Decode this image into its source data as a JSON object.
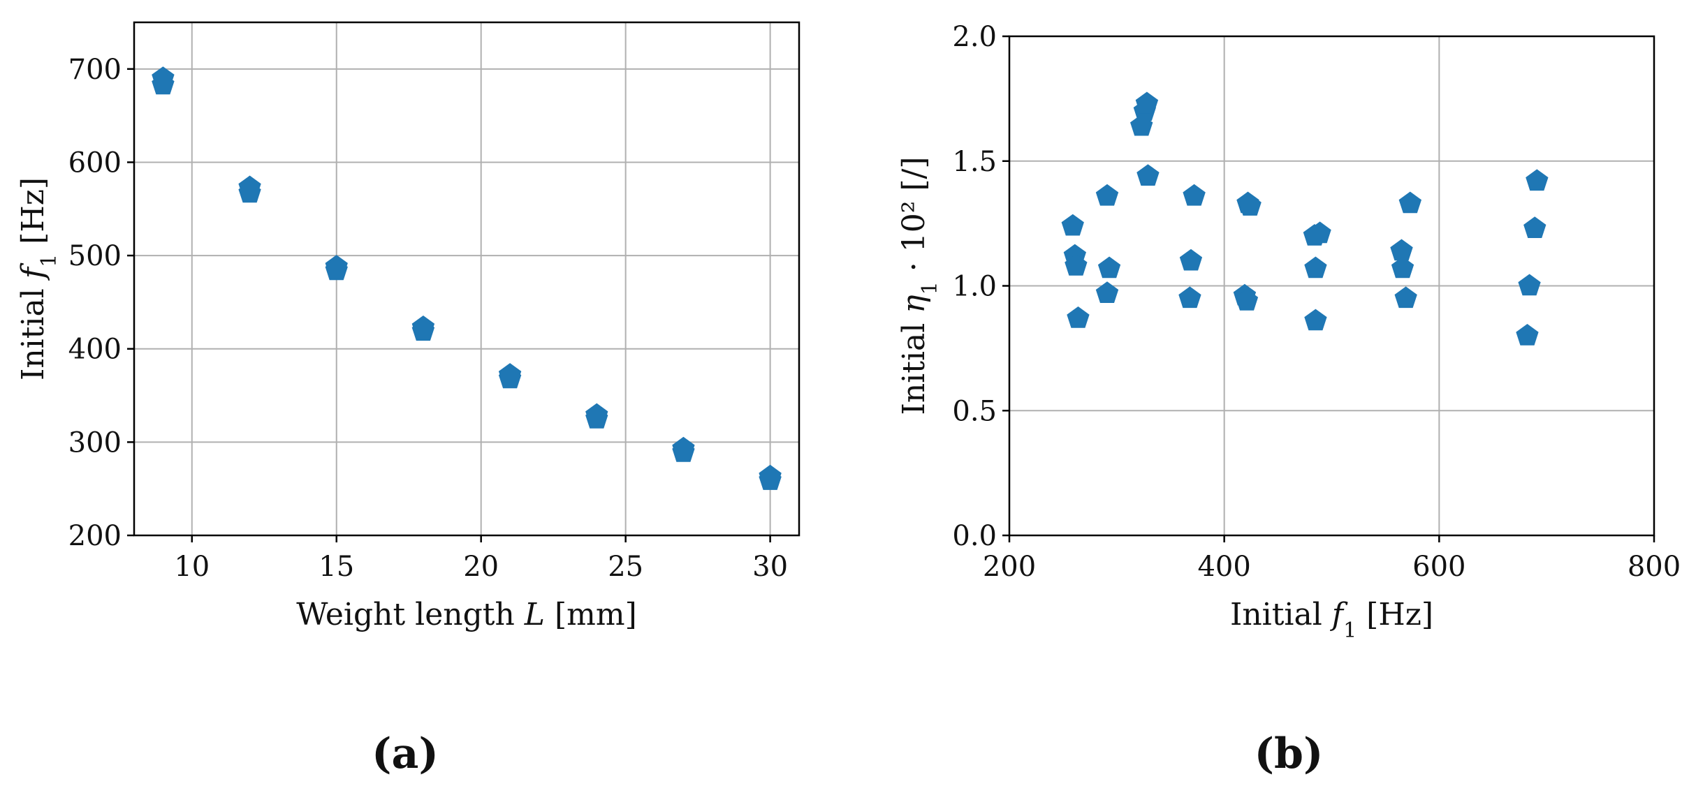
{
  "chart_data": [
    {
      "type": "scatter",
      "panel_label": "(a)",
      "xlabel": "Weight length L [mm]",
      "ylabel": "Initial f1 [Hz]",
      "xlim": [
        8,
        31
      ],
      "ylim": [
        200,
        750
      ],
      "xticks": [
        10,
        15,
        20,
        25,
        30
      ],
      "yticks": [
        200,
        300,
        400,
        500,
        600,
        700
      ],
      "grid": true,
      "marker": "pentagon",
      "color": "#1f77b4",
      "series": [
        {
          "points": [
            [
              9,
              690
            ],
            [
              9,
              683
            ],
            [
              12,
              573
            ],
            [
              12,
              567
            ],
            [
              15,
              488
            ],
            [
              15,
              484
            ],
            [
              18,
              423
            ],
            [
              18,
              419
            ],
            [
              21,
              372
            ],
            [
              21,
              368
            ],
            [
              24,
              329
            ],
            [
              24,
              325
            ],
            [
              27,
              293
            ],
            [
              27,
              289
            ],
            [
              30,
              263
            ],
            [
              30,
              259
            ]
          ]
        }
      ]
    },
    {
      "type": "scatter",
      "panel_label": "(b)",
      "xlabel": "Initial f1 [Hz]",
      "ylabel": "Initial η1 · 10² [/]",
      "xlim": [
        200,
        800
      ],
      "ylim": [
        0.0,
        2.0
      ],
      "xticks": [
        200,
        400,
        600,
        800
      ],
      "yticks": [
        "0.0",
        "0.5",
        "1.0",
        "1.5",
        "2.0"
      ],
      "grid": true,
      "marker": "pentagon",
      "color": "#1f77b4",
      "series": [
        {
          "points": [
            [
              259,
              1.24
            ],
            [
              261,
              1.12
            ],
            [
              262,
              1.08
            ],
            [
              264,
              0.87
            ],
            [
              291,
              1.36
            ],
            [
              291,
              0.97
            ],
            [
              293,
              1.07
            ],
            [
              323,
              1.64
            ],
            [
              326,
              1.7
            ],
            [
              328,
              1.73
            ],
            [
              329,
              1.44
            ],
            [
              369,
              1.1
            ],
            [
              368,
              0.95
            ],
            [
              372,
              1.36
            ],
            [
              419,
              0.96
            ],
            [
              421,
              0.94
            ],
            [
              422,
              1.33
            ],
            [
              424,
              1.32
            ],
            [
              484,
              1.2
            ],
            [
              485,
              1.07
            ],
            [
              485,
              0.86
            ],
            [
              489,
              1.21
            ],
            [
              565,
              1.14
            ],
            [
              566,
              1.07
            ],
            [
              569,
              0.95
            ],
            [
              573,
              1.33
            ],
            [
              682,
              0.8
            ],
            [
              684,
              1.0
            ],
            [
              689,
              1.23
            ],
            [
              691,
              1.42
            ]
          ]
        }
      ]
    }
  ]
}
